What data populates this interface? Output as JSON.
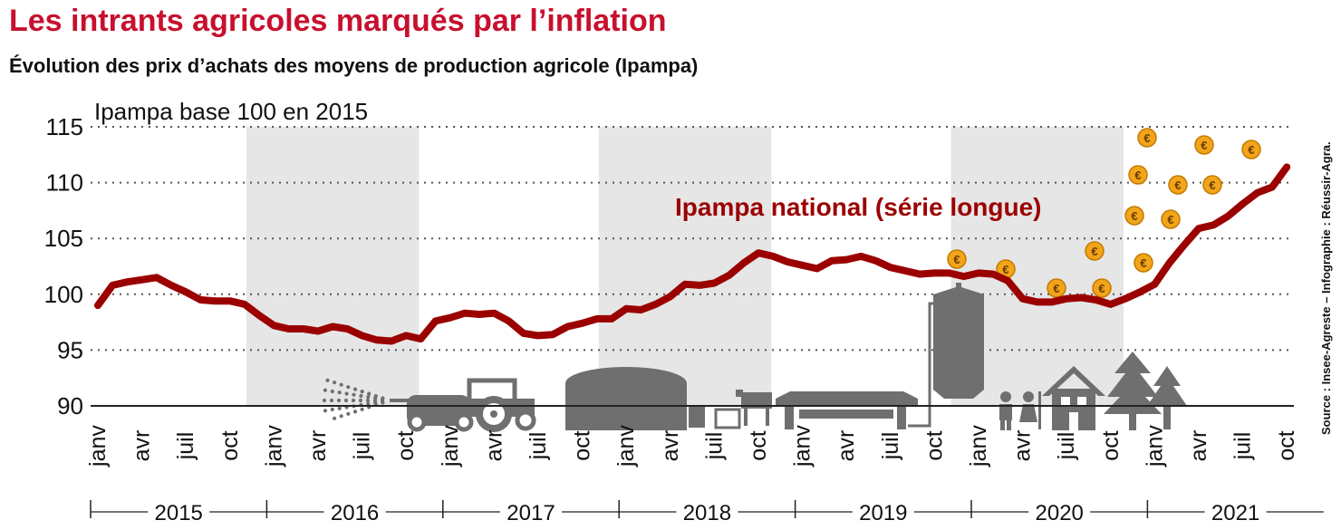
{
  "title": "Les intrants agricoles marqués par l’inflation",
  "subtitle": "Évolution des prix d’achats des moyens de production agricole (Ipampa)",
  "source": "Source : Insee-Agreste – Infographie : Réussir-Agra.",
  "colors": {
    "title": "#c8102e",
    "line": "#9b0000",
    "band": "#e6e6e6",
    "icons": "#6f6f6f",
    "coin": "#f2a51a"
  },
  "chart_data": {
    "type": "line",
    "title": "Les intrants agricoles marqués par l’inflation",
    "subtitle": "Évolution des prix d’achats des moyens de production agricole (Ipampa)",
    "ylabel": "Ipampa base 100 en 2015",
    "ylim": [
      90,
      115
    ],
    "yticks": [
      90,
      95,
      100,
      105,
      110,
      115
    ],
    "grid": true,
    "x_start": "2015-01",
    "month_tick_labels": [
      "janv",
      "avr",
      "juil",
      "oct"
    ],
    "years": [
      "2015",
      "2016",
      "2017",
      "2018",
      "2019",
      "2020",
      "2021"
    ],
    "series": [
      {
        "name": "Ipampa national (série longue)",
        "values": [
          99.0,
          100.8,
          101.1,
          101.3,
          101.5,
          100.8,
          100.2,
          99.5,
          99.4,
          99.4,
          99.1,
          98.1,
          97.2,
          96.9,
          96.9,
          96.7,
          97.1,
          96.9,
          96.3,
          95.9,
          95.8,
          96.3,
          96.0,
          97.6,
          97.9,
          98.3,
          98.2,
          98.3,
          97.6,
          96.5,
          96.3,
          96.4,
          97.1,
          97.4,
          97.8,
          97.8,
          98.7,
          98.6,
          99.1,
          99.8,
          100.9,
          100.8,
          101.0,
          101.7,
          102.8,
          103.7,
          103.4,
          102.9,
          102.6,
          102.3,
          103.0,
          103.1,
          103.4,
          103.0,
          102.4,
          102.1,
          101.8,
          101.9,
          101.9,
          101.6,
          101.9,
          101.8,
          101.2,
          99.6,
          99.3,
          99.3,
          99.6,
          99.7,
          99.5,
          99.1,
          99.6,
          100.2,
          100.9,
          102.8,
          104.4,
          105.9,
          106.2,
          107.0,
          108.1,
          109.1,
          109.6,
          111.4
        ]
      }
    ]
  }
}
